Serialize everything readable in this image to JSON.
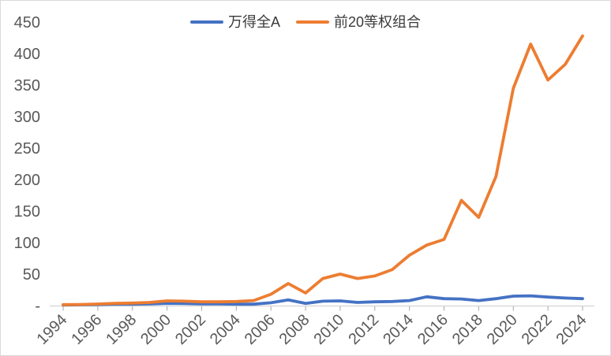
{
  "window": {
    "background": "#FFFFFF",
    "border_color": "#D9D9D9"
  },
  "chart_data": {
    "type": "line",
    "title": "",
    "xlabel": "",
    "ylabel": "",
    "grid": false,
    "legend_position": "top-center",
    "ylim": [
      0,
      450
    ],
    "ytick_interval": 50,
    "x": [
      1994,
      1995,
      1996,
      1997,
      1998,
      1999,
      2000,
      2001,
      2002,
      2003,
      2004,
      2005,
      2006,
      2007,
      2008,
      2009,
      2010,
      2011,
      2012,
      2013,
      2014,
      2015,
      2016,
      2017,
      2018,
      2019,
      2020,
      2021,
      2022,
      2023,
      2024
    ],
    "series": [
      {
        "name": "万得全A",
        "color": "#4472C4",
        "values": [
          1,
          1.2,
          1.6,
          2.2,
          2.2,
          2.6,
          3.6,
          3.2,
          2.6,
          2.6,
          2.2,
          2.2,
          4.5,
          9,
          3.5,
          7,
          7.5,
          5,
          6,
          6.5,
          8,
          14,
          11,
          10.5,
          8,
          11,
          15,
          15.5,
          13.5,
          12,
          11
        ]
      },
      {
        "name": "前20等权组合",
        "color": "#ED7D31",
        "values": [
          1.5,
          1.8,
          2.5,
          3.5,
          4,
          5,
          7.5,
          7,
          6,
          6,
          6.5,
          8,
          18,
          35,
          20,
          43,
          50,
          43,
          47,
          57,
          80,
          96,
          105,
          167,
          140,
          205,
          345,
          415,
          358,
          383,
          428
        ]
      }
    ],
    "yticks": [
      {
        "value": 450,
        "label": "450"
      },
      {
        "value": 400,
        "label": "400"
      },
      {
        "value": 350,
        "label": "350"
      },
      {
        "value": 300,
        "label": "300"
      },
      {
        "value": 250,
        "label": "250"
      },
      {
        "value": 200,
        "label": "200"
      },
      {
        "value": 150,
        "label": "150"
      },
      {
        "value": 100,
        "label": "100"
      },
      {
        "value": 50,
        "label": "50"
      },
      {
        "value": 0,
        "label": "-"
      }
    ],
    "xticks": [
      {
        "value": 1994,
        "label": "1994"
      },
      {
        "value": 1996,
        "label": "1996"
      },
      {
        "value": 1998,
        "label": "1998"
      },
      {
        "value": 2000,
        "label": "2000"
      },
      {
        "value": 2002,
        "label": "2002"
      },
      {
        "value": 2004,
        "label": "2004"
      },
      {
        "value": 2006,
        "label": "2006"
      },
      {
        "value": 2008,
        "label": "2008"
      },
      {
        "value": 2010,
        "label": "2010"
      },
      {
        "value": 2012,
        "label": "2012"
      },
      {
        "value": 2014,
        "label": "2014"
      },
      {
        "value": 2016,
        "label": "2016"
      },
      {
        "value": 2018,
        "label": "2018"
      },
      {
        "value": 2020,
        "label": "2020"
      },
      {
        "value": 2022,
        "label": "2022"
      },
      {
        "value": 2024,
        "label": "2024"
      }
    ],
    "axis_color": "#D9D9D9",
    "tick_color": "#A6A6A6",
    "axis_label_color": "#595959",
    "legend_text_color": "#3A3A3A"
  }
}
